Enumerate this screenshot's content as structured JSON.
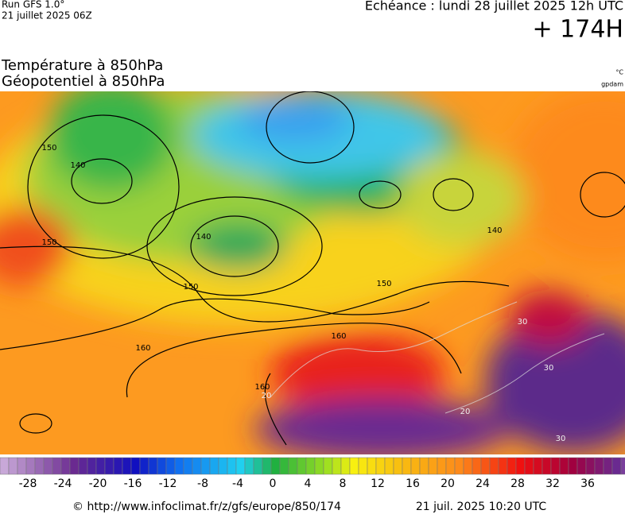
{
  "header": {
    "run": "Run GFS 1.0°",
    "run_date": "21 juillet 2025 06Z",
    "valid": "Echéance : lundi 28 juillet 2025 12h UTC",
    "lead": "+ 174H",
    "title_1": "Température à 850hPa",
    "title_2": "Géopotentiel à 850hPa",
    "unit_1": "°C",
    "unit_2": "gpdam"
  },
  "map": {
    "contour_labels": [
      "150",
      "140",
      "150",
      "140",
      "150",
      "150",
      "140",
      "160",
      "160",
      "160",
      "20",
      "20",
      "30",
      "30",
      "30"
    ]
  },
  "legend": {
    "ticks": [
      -28,
      -24,
      -20,
      -16,
      -12,
      -8,
      -4,
      0,
      4,
      8,
      12,
      16,
      20,
      24,
      28,
      32,
      36
    ]
  },
  "footer": {
    "url": "© http://www.infoclimat.fr/z/gfs/europe/850/174",
    "generated": "21 juil. 2025 10:20 UTC"
  }
}
